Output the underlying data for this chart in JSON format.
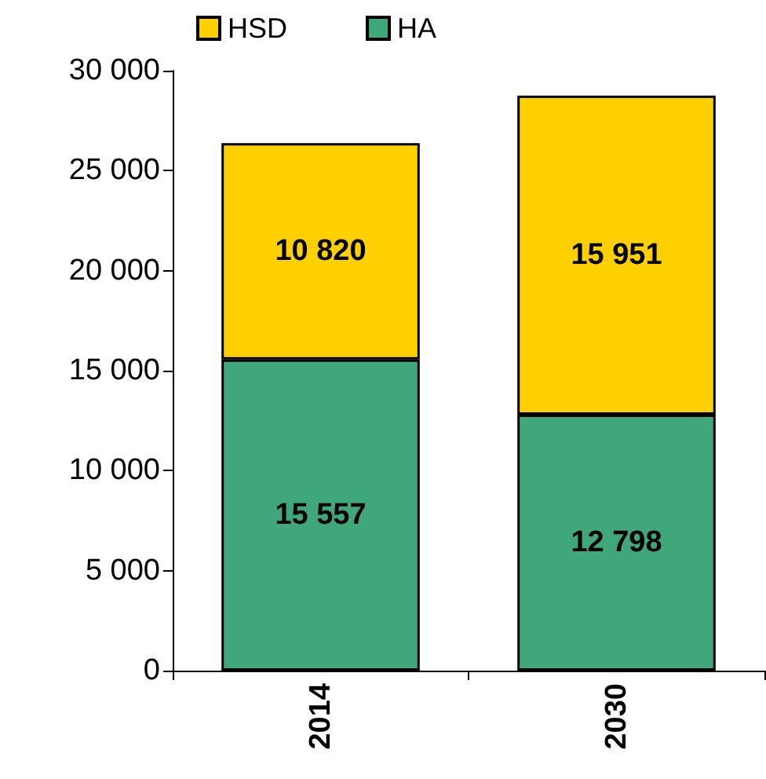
{
  "chart_data": {
    "type": "bar",
    "stacked": true,
    "categories": [
      "2014",
      "2030"
    ],
    "series": [
      {
        "name": "HA",
        "color": "#3fa77a",
        "values": [
          15557,
          12798
        ],
        "value_labels": [
          "15 557",
          "12 798"
        ]
      },
      {
        "name": "HSD",
        "color": "#ffd000",
        "values": [
          10820,
          15951
        ],
        "value_labels": [
          "10 820",
          "15 951"
        ]
      }
    ],
    "ylim": [
      0,
      30000
    ],
    "yticks": [
      {
        "value": 0,
        "label": "0"
      },
      {
        "value": 5000,
        "label": "5 000"
      },
      {
        "value": 10000,
        "label": "10 000"
      },
      {
        "value": 15000,
        "label": "15 000"
      },
      {
        "value": 20000,
        "label": "20 000"
      },
      {
        "value": 25000,
        "label": "25 000"
      },
      {
        "value": 30000,
        "label": "30 000"
      }
    ],
    "grid": false,
    "legend": "top"
  }
}
